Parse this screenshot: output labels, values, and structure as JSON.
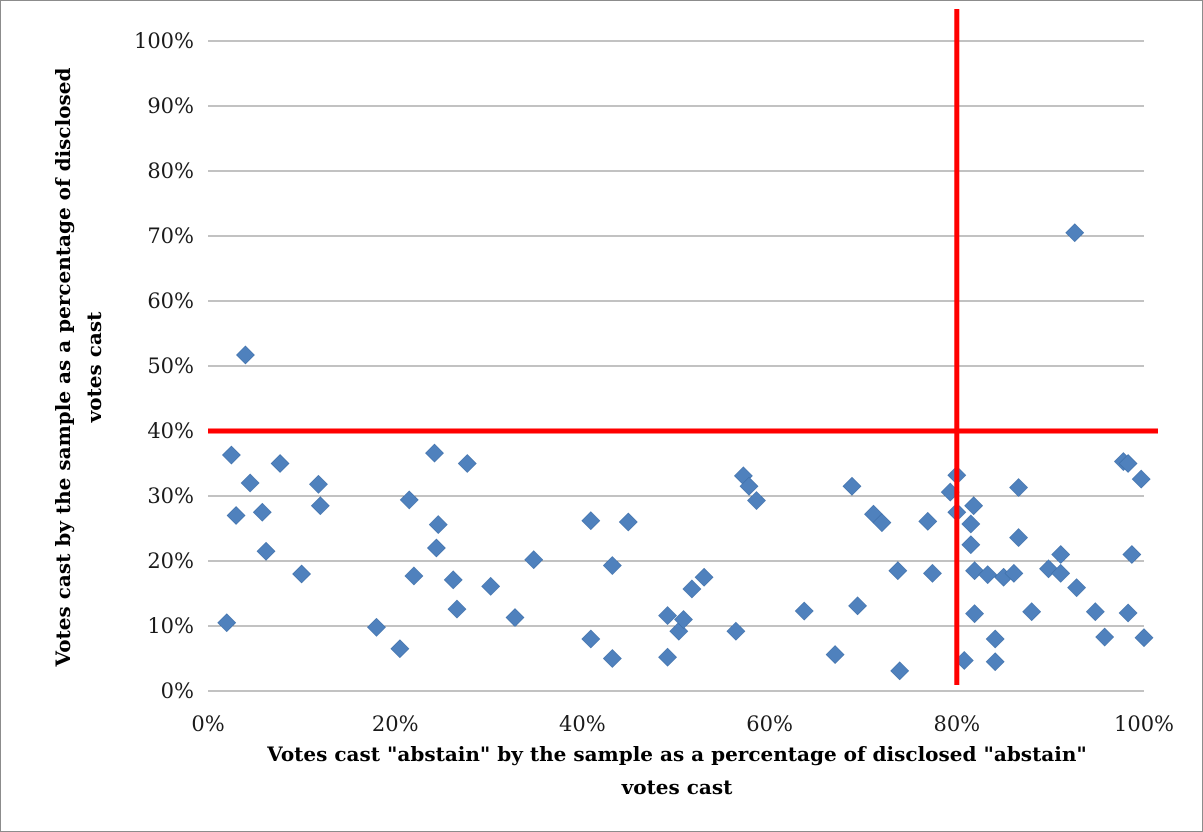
{
  "chart_data": {
    "type": "scatter",
    "title": "",
    "xlabel": "Votes cast \"abstain\" by the sample as a percentage of disclosed \"abstain\" votes cast",
    "xlabel_lines": [
      "Votes cast \"abstain\" by the sample as a percentage of disclosed \"abstain\"",
      "votes cast"
    ],
    "ylabel": "Votes cast by the sample as a percentage of disclosed votes cast",
    "ylabel_lines": [
      "Votes cast by the sample as a percentage of disclosed",
      "votes cast"
    ],
    "xlim": [
      0,
      100
    ],
    "ylim": [
      0,
      100
    ],
    "x_ticks": [
      0,
      20,
      40,
      60,
      80,
      100
    ],
    "x_tick_labels": [
      "0%",
      "20%",
      "40%",
      "60%",
      "80%",
      "100%"
    ],
    "y_ticks": [
      0,
      10,
      20,
      30,
      40,
      50,
      60,
      70,
      80,
      90,
      100
    ],
    "y_tick_labels": [
      "0%",
      "10%",
      "20%",
      "30%",
      "40%",
      "50%",
      "60%",
      "70%",
      "80%",
      "90%",
      "100%"
    ],
    "grid": "horizontal",
    "legend": "none",
    "marker": "diamond",
    "marker_color": "#4f81bd",
    "reference_lines": [
      {
        "orientation": "horizontal",
        "value": 40,
        "color": "#ff0000"
      },
      {
        "orientation": "vertical",
        "value": 80,
        "color": "#ff0000"
      }
    ],
    "points": [
      [
        2,
        10.5
      ],
      [
        2.5,
        36.3
      ],
      [
        3,
        27
      ],
      [
        4,
        51.7
      ],
      [
        4.5,
        32
      ],
      [
        5.8,
        27.5
      ],
      [
        6.2,
        21.5
      ],
      [
        7.7,
        35
      ],
      [
        10,
        18
      ],
      [
        11.8,
        31.8
      ],
      [
        12,
        28.5
      ],
      [
        18,
        9.8
      ],
      [
        20.5,
        6.5
      ],
      [
        21.5,
        29.4
      ],
      [
        22,
        17.7
      ],
      [
        24.2,
        36.6
      ],
      [
        24.4,
        22
      ],
      [
        24.6,
        25.6
      ],
      [
        26.2,
        17.1
      ],
      [
        26.6,
        12.6
      ],
      [
        27.7,
        35
      ],
      [
        30.2,
        16.1
      ],
      [
        32.8,
        11.3
      ],
      [
        34.8,
        20.2
      ],
      [
        40.9,
        8
      ],
      [
        40.9,
        26.2
      ],
      [
        43.2,
        19.3
      ],
      [
        43.2,
        5
      ],
      [
        44.9,
        26
      ],
      [
        49.1,
        11.6
      ],
      [
        49.1,
        5.2
      ],
      [
        50.3,
        9.2
      ],
      [
        50.8,
        11
      ],
      [
        51.7,
        15.7
      ],
      [
        53,
        17.5
      ],
      [
        56.4,
        9.2
      ],
      [
        57.2,
        33.1
      ],
      [
        57.8,
        31.5
      ],
      [
        58.6,
        29.3
      ],
      [
        63.7,
        12.3
      ],
      [
        67,
        5.6
      ],
      [
        68.8,
        31.5
      ],
      [
        69.4,
        13.1
      ],
      [
        71.1,
        27.2
      ],
      [
        72,
        25.9
      ],
      [
        73.7,
        18.5
      ],
      [
        73.9,
        3.1
      ],
      [
        76.9,
        26.1
      ],
      [
        77.4,
        18.1
      ],
      [
        79.3,
        30.6
      ],
      [
        80,
        33.2
      ],
      [
        80,
        27.5
      ],
      [
        80.8,
        4.7
      ],
      [
        81.5,
        22.5
      ],
      [
        81.5,
        25.7
      ],
      [
        81.8,
        28.5
      ],
      [
        81.9,
        18.5
      ],
      [
        81.9,
        11.9
      ],
      [
        83.3,
        17.9
      ],
      [
        84.1,
        8
      ],
      [
        84.1,
        4.5
      ],
      [
        85,
        17.5
      ],
      [
        86.1,
        18.1
      ],
      [
        86.6,
        31.3
      ],
      [
        86.6,
        23.6
      ],
      [
        88,
        12.2
      ],
      [
        89.8,
        18.8
      ],
      [
        91.1,
        21
      ],
      [
        91.1,
        18.1
      ],
      [
        92.6,
        70.5
      ],
      [
        92.8,
        15.9
      ],
      [
        94.8,
        12.2
      ],
      [
        95.8,
        8.3
      ],
      [
        97.8,
        35.3
      ],
      [
        98.3,
        35
      ],
      [
        98.3,
        12
      ],
      [
        98.7,
        21
      ],
      [
        99.7,
        32.6
      ],
      [
        100,
        8.2
      ]
    ]
  }
}
